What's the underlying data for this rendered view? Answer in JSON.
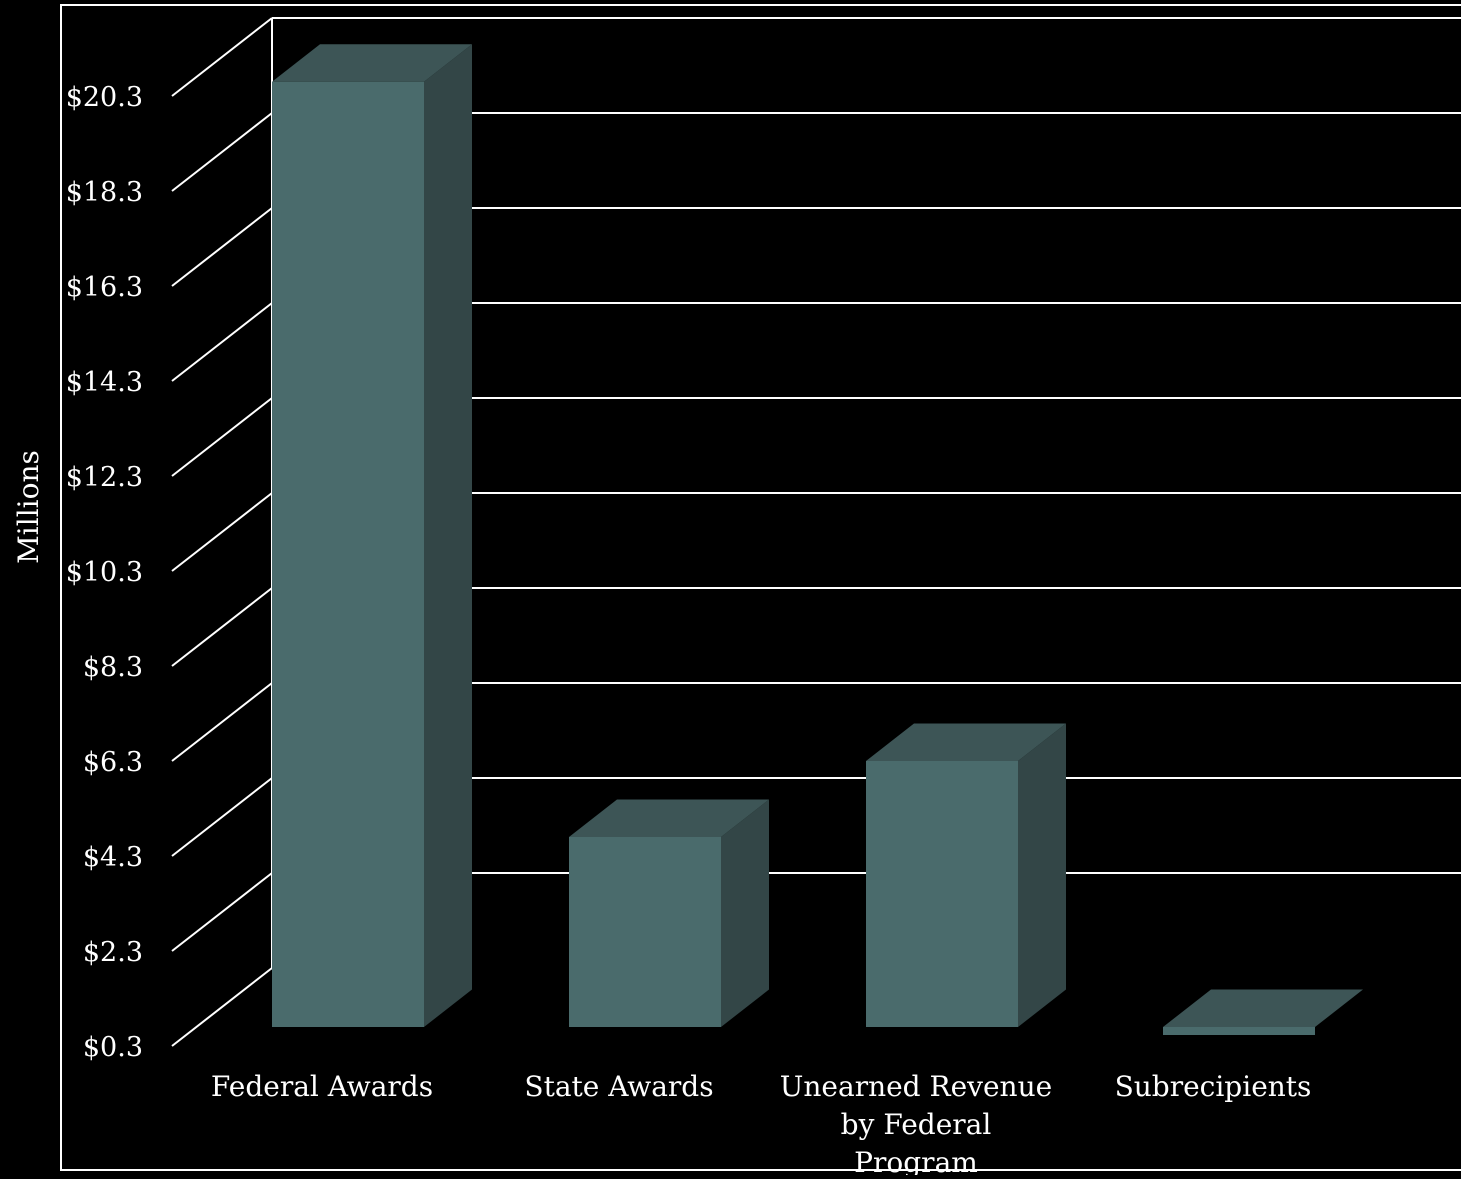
{
  "chart_data": {
    "type": "bar",
    "title": "",
    "xlabel": "",
    "ylabel": "Millions",
    "categories": [
      [
        "Federal Awards"
      ],
      [
        "State Awards"
      ],
      [
        "Unearned Revenue",
        "by Federal",
        "Program"
      ],
      [
        "Subrecipients"
      ]
    ],
    "values": [
      20.2,
      4.3,
      5.9,
      0.3
    ],
    "ylim": [
      0.3,
      20.3
    ],
    "yticks": [
      "$0.3",
      "$2.3",
      "$4.3",
      "$6.3",
      "$8.3",
      "$10.3",
      "$12.3",
      "$14.3",
      "$16.3",
      "$18.3",
      "$20.3"
    ],
    "grid": true,
    "legend": "none",
    "colors": {
      "background": "#000000",
      "bar_front": "#4a6b6c",
      "bar_side": "#334647",
      "bar_top": "#3d5556",
      "gridline": "#ffffff",
      "text": "#ffffff"
    }
  }
}
